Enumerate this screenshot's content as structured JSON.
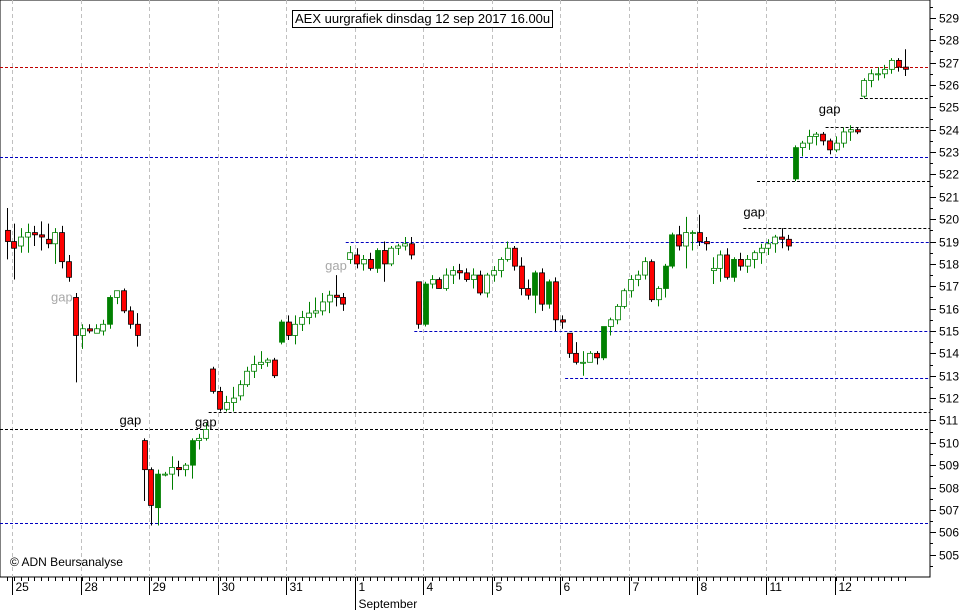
{
  "title": "AEX uurgrafiek dinsdag 12 sep 2017 16.00u",
  "copyright": "© ADN Beursanalyse",
  "colors": {
    "up": "#008000",
    "down": "#ff0000",
    "grid": "#c0c0c0",
    "blue_line": "#0000c0",
    "red_line": "#c00000",
    "black_line": "#000000",
    "gap_gray": "#a8a8a8",
    "gap_black": "#000000"
  },
  "chart_data": {
    "type": "candlestick",
    "title": "AEX uurgrafiek dinsdag 12 sep 2017 16.00u",
    "ylim": [
      504,
      529.8
    ],
    "y_ticks": [
      505,
      506,
      507,
      508,
      509,
      510,
      511,
      512,
      513,
      514,
      515,
      516,
      517,
      518,
      519,
      520,
      521,
      522,
      523,
      524,
      525,
      526,
      527,
      528,
      529
    ],
    "x_day_labels": [
      "25",
      "28",
      "29",
      "30",
      "31",
      "1",
      "4",
      "5",
      "6",
      "7",
      "8",
      "11",
      "12"
    ],
    "month_label": "September",
    "candles": [
      [
        519.5,
        520.5,
        518.2,
        519.0
      ],
      [
        519.0,
        519.8,
        517.3,
        518.7
      ],
      [
        518.8,
        519.6,
        518.5,
        519.2
      ],
      [
        519.2,
        519.8,
        518.5,
        519.4
      ],
      [
        519.4,
        519.7,
        518.8,
        519.3
      ],
      [
        519.3,
        519.9,
        518.6,
        519.2
      ],
      [
        519.1,
        519.8,
        518.7,
        518.9
      ],
      [
        518.9,
        519.6,
        518.0,
        519.4
      ],
      [
        519.4,
        519.7,
        517.8,
        518.1
      ],
      [
        518.1,
        518.4,
        517.2,
        517.4
      ],
      [
        516.5,
        516.7,
        512.7,
        514.8
      ],
      [
        514.8,
        515.3,
        514.2,
        515.1
      ],
      [
        515.1,
        515.3,
        514.9,
        515.0
      ],
      [
        514.9,
        515.3,
        514.9,
        515.1
      ],
      [
        515.0,
        515.5,
        514.8,
        515.3
      ],
      [
        515.3,
        516.6,
        515.1,
        516.5
      ],
      [
        516.5,
        516.8,
        516.2,
        516.8
      ],
      [
        516.8,
        516.9,
        515.8,
        515.9
      ],
      [
        515.9,
        516.1,
        515.1,
        515.3
      ],
      [
        515.3,
        515.8,
        514.3,
        514.8
      ],
      [
        510.1,
        510.2,
        507.4,
        508.8
      ],
      [
        508.8,
        508.9,
        506.3,
        507.2
      ],
      [
        507.1,
        508.8,
        506.3,
        508.6
      ],
      [
        508.6,
        508.7,
        508.5,
        508.6
      ],
      [
        508.6,
        509.4,
        507.9,
        508.9
      ],
      [
        508.9,
        509.2,
        508.5,
        508.8
      ],
      [
        508.8,
        509.1,
        508.5,
        509.0
      ],
      [
        509.0,
        510.2,
        508.4,
        510.1
      ],
      [
        510.1,
        510.4,
        509.7,
        510.2
      ],
      [
        510.2,
        510.9,
        510.1,
        510.6
      ],
      [
        513.3,
        513.4,
        512.2,
        512.3
      ],
      [
        512.3,
        512.5,
        511.4,
        511.5
      ],
      [
        511.5,
        512.1,
        511.4,
        511.8
      ],
      [
        511.8,
        512.5,
        511.4,
        512.0
      ],
      [
        512.1,
        512.8,
        511.9,
        512.6
      ],
      [
        512.6,
        513.4,
        512.5,
        513.2
      ],
      [
        513.2,
        513.9,
        512.9,
        513.5
      ],
      [
        513.5,
        514.1,
        513.3,
        513.6
      ],
      [
        513.6,
        513.8,
        513.4,
        513.7
      ],
      [
        513.7,
        513.8,
        512.9,
        513.0
      ],
      [
        514.5,
        515.5,
        514.4,
        515.4
      ],
      [
        515.4,
        515.7,
        514.6,
        514.8
      ],
      [
        514.8,
        515.7,
        514.4,
        515.3
      ],
      [
        515.3,
        515.9,
        515.0,
        515.6
      ],
      [
        515.6,
        516.3,
        515.3,
        515.8
      ],
      [
        515.8,
        516.5,
        515.6,
        515.9
      ],
      [
        515.9,
        516.7,
        515.7,
        516.3
      ],
      [
        516.3,
        516.8,
        515.8,
        516.6
      ],
      [
        516.6,
        517.5,
        516.1,
        516.5
      ],
      [
        516.5,
        516.7,
        515.9,
        516.2
      ],
      [
        518.2,
        518.8,
        518.0,
        518.5
      ],
      [
        518.4,
        518.7,
        517.8,
        518.0
      ],
      [
        518.0,
        518.4,
        517.7,
        518.2
      ],
      [
        518.2,
        518.5,
        517.7,
        517.8
      ],
      [
        517.8,
        518.7,
        517.6,
        518.6
      ],
      [
        518.6,
        519.0,
        517.2,
        518.0
      ],
      [
        518.0,
        518.8,
        517.9,
        518.7
      ],
      [
        518.7,
        518.9,
        518.4,
        518.8
      ],
      [
        518.8,
        519.2,
        518.6,
        518.9
      ],
      [
        518.9,
        519.2,
        518.2,
        518.4
      ],
      [
        517.2,
        517.2,
        515.1,
        515.3
      ],
      [
        515.3,
        517.2,
        515.2,
        517.1
      ],
      [
        517.1,
        517.5,
        516.9,
        517.3
      ],
      [
        517.3,
        517.4,
        516.9,
        516.9
      ],
      [
        516.9,
        517.8,
        516.8,
        517.5
      ],
      [
        517.5,
        517.9,
        517.1,
        517.7
      ],
      [
        517.7,
        518.0,
        517.3,
        517.6
      ],
      [
        517.6,
        517.8,
        517.2,
        517.3
      ],
      [
        517.3,
        517.8,
        516.9,
        517.5
      ],
      [
        517.5,
        517.7,
        516.6,
        516.7
      ],
      [
        516.7,
        517.6,
        516.5,
        517.5
      ],
      [
        517.5,
        517.9,
        517.2,
        517.7
      ],
      [
        517.7,
        518.3,
        517.4,
        518.2
      ],
      [
        518.2,
        519.0,
        518.1,
        518.7
      ],
      [
        518.7,
        518.8,
        517.7,
        517.9
      ],
      [
        517.9,
        518.3,
        516.6,
        516.9
      ],
      [
        516.9,
        517.3,
        516.4,
        516.6
      ],
      [
        516.6,
        517.7,
        515.8,
        517.6
      ],
      [
        517.6,
        517.8,
        515.9,
        516.2
      ],
      [
        516.2,
        517.3,
        516.0,
        517.2
      ],
      [
        517.2,
        517.4,
        515.0,
        515.5
      ],
      [
        515.5,
        515.7,
        515.1,
        515.4
      ],
      [
        514.9,
        514.9,
        513.8,
        514.0
      ],
      [
        514.0,
        514.5,
        513.5,
        513.6
      ],
      [
        513.6,
        514.1,
        513.0,
        513.6
      ],
      [
        513.6,
        514.1,
        513.6,
        514.0
      ],
      [
        514.0,
        514.1,
        513.5,
        513.8
      ],
      [
        513.8,
        515.2,
        513.7,
        515.2
      ],
      [
        515.2,
        515.6,
        514.8,
        515.5
      ],
      [
        515.5,
        516.2,
        515.3,
        516.1
      ],
      [
        516.1,
        516.9,
        516.0,
        516.8
      ],
      [
        516.8,
        517.5,
        516.5,
        517.3
      ],
      [
        517.3,
        517.7,
        517.0,
        517.5
      ],
      [
        517.5,
        518.3,
        517.3,
        518.1
      ],
      [
        518.1,
        518.2,
        516.3,
        516.4
      ],
      [
        516.4,
        517.0,
        516.1,
        516.9
      ],
      [
        516.9,
        518.0,
        516.5,
        517.9
      ],
      [
        517.9,
        519.4,
        517.8,
        519.3
      ],
      [
        519.3,
        519.7,
        518.6,
        518.8
      ],
      [
        518.8,
        520.1,
        517.8,
        519.4
      ],
      [
        519.4,
        519.5,
        518.6,
        519.4
      ],
      [
        519.4,
        520.2,
        518.8,
        519.0
      ],
      [
        519.0,
        519.2,
        518.6,
        518.9
      ],
      [
        517.7,
        518.3,
        517.1,
        517.8
      ],
      [
        517.8,
        518.6,
        517.2,
        518.4
      ],
      [
        518.4,
        518.7,
        517.3,
        517.4
      ],
      [
        517.4,
        518.3,
        517.2,
        518.2
      ],
      [
        518.2,
        518.5,
        517.7,
        517.9
      ],
      [
        517.9,
        518.4,
        517.6,
        518.2
      ],
      [
        518.2,
        518.6,
        517.8,
        518.5
      ],
      [
        518.5,
        518.9,
        518.0,
        518.7
      ],
      [
        518.7,
        519.1,
        518.4,
        518.9
      ],
      [
        518.9,
        519.3,
        518.5,
        519.2
      ],
      [
        519.2,
        519.6,
        518.7,
        519.1
      ],
      [
        519.1,
        519.3,
        518.6,
        518.8
      ],
      [
        521.8,
        523.3,
        521.7,
        523.2
      ],
      [
        523.2,
        523.5,
        522.8,
        523.4
      ],
      [
        523.4,
        524.0,
        523.1,
        523.7
      ],
      [
        523.7,
        523.9,
        523.3,
        523.8
      ],
      [
        523.8,
        523.9,
        523.3,
        523.5
      ],
      [
        523.5,
        523.6,
        522.9,
        523.1
      ],
      [
        523.1,
        523.7,
        523.0,
        523.4
      ],
      [
        523.4,
        524.1,
        523.2,
        523.9
      ],
      [
        523.9,
        524.2,
        523.5,
        524.0
      ],
      [
        524.0,
        524.1,
        523.8,
        523.9
      ],
      [
        525.5,
        526.3,
        525.4,
        526.2
      ],
      [
        526.2,
        526.7,
        525.9,
        526.5
      ],
      [
        526.5,
        526.8,
        526.2,
        526.5
      ],
      [
        526.5,
        526.9,
        526.3,
        526.7
      ],
      [
        526.7,
        527.2,
        526.5,
        527.1
      ],
      [
        527.1,
        527.2,
        526.6,
        526.8
      ],
      [
        526.8,
        527.6,
        526.4,
        526.7
      ]
    ],
    "hlines": [
      {
        "y": 526.8,
        "style": "red",
        "from": 0,
        "to": 131
      },
      {
        "y": 522.8,
        "style": "blue",
        "from": 0,
        "to": 131
      },
      {
        "y": 519.0,
        "style": "blue",
        "from": 50,
        "to": 131
      },
      {
        "y": 515.0,
        "style": "blue",
        "from": 60,
        "to": 131
      },
      {
        "y": 512.9,
        "style": "blue",
        "from": 82,
        "to": 131
      },
      {
        "y": 510.6,
        "style": "black",
        "from": 0,
        "to": 131
      },
      {
        "y": 506.4,
        "style": "blue",
        "from": 0,
        "to": 131
      },
      {
        "y": 511.4,
        "style": "black",
        "from": 30,
        "to": 131
      },
      {
        "y": 519.6,
        "style": "black",
        "from": 108,
        "to": 131
      },
      {
        "y": 521.7,
        "style": "black",
        "from": 110,
        "to": 131
      },
      {
        "y": 524.1,
        "style": "black",
        "from": 120,
        "to": 131
      },
      {
        "y": 525.4,
        "style": "black",
        "from": 125,
        "to": 131
      }
    ],
    "annotations": [
      {
        "text": "gap",
        "x": 8,
        "y": 516.5,
        "color": "gray"
      },
      {
        "text": "gap",
        "x": 18,
        "y": 511.0,
        "color": "black"
      },
      {
        "text": "gap",
        "x": 29,
        "y": 510.9,
        "color": "black"
      },
      {
        "text": "gap",
        "x": 48,
        "y": 517.9,
        "color": "gray"
      },
      {
        "text": "gap",
        "x": 109,
        "y": 520.3,
        "color": "black"
      },
      {
        "text": "gap",
        "x": 120,
        "y": 524.9,
        "color": "black"
      }
    ]
  }
}
